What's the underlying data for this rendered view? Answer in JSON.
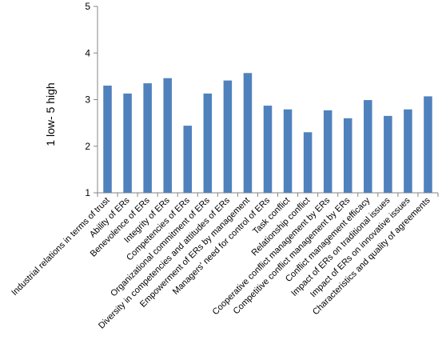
{
  "chart_data": {
    "type": "bar",
    "title": "",
    "xlabel": "",
    "ylabel": "1 low- 5 high",
    "ylim": [
      1,
      5
    ],
    "yticks": [
      1,
      2,
      3,
      4,
      5
    ],
    "grid": false,
    "bar_color": "#4F81BD",
    "categories": [
      "Industrial relations in terms of trust",
      "Ability of ERs",
      "Benevolence of ERs",
      "Integrity of ERs",
      "Competencies of ERs",
      "Organizational commitment of ERs",
      "Diversity in competencies and attitudes of ERs",
      "Empowerment of ERs by management",
      "Managers' need for control of ERs",
      "Task conflict",
      "Relationship conflict",
      "Cooperative conflict management by ERs",
      "Competitive conflict management by ERs",
      "Conflict management efficacy",
      "Impact of ERs on traditional issues",
      "Impact of ERs on innovative issues",
      "Characteristics and quality of agreements"
    ],
    "values": [
      3.3,
      3.13,
      3.35,
      3.46,
      2.44,
      3.13,
      3.41,
      3.57,
      2.87,
      2.79,
      2.3,
      2.77,
      2.6,
      2.99,
      2.65,
      2.79,
      3.07
    ]
  }
}
